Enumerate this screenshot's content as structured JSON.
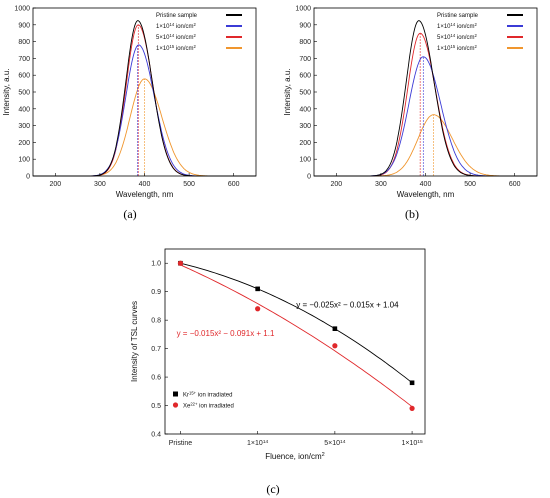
{
  "captions": [
    "(a)",
    "(b)",
    "(c)"
  ],
  "colors": {
    "pristine": "#000000",
    "e14": "#3b3bd6",
    "e5e14": "#e0282b",
    "e15": "#f0962e",
    "kr": "#000000",
    "xe": "#e0282b",
    "frame": "#000000"
  },
  "chart_data": [
    {
      "type": "line",
      "caption": "(a)",
      "xlabel": "Wavelength, nm",
      "ylabel": "Intensity, a.u.",
      "xlim": [
        150,
        650
      ],
      "ylim": [
        0,
        1000
      ],
      "xticks": [
        200,
        300,
        400,
        500,
        600
      ],
      "yticks": [
        0,
        100,
        200,
        300,
        400,
        500,
        600,
        700,
        800,
        900,
        1000
      ],
      "legend_position": "top-right",
      "series": [
        {
          "name": "Pristine sample",
          "label_main": "Pristine sample",
          "label_exp": "",
          "label_unit": "",
          "color_key": "pristine",
          "peak_x": 385,
          "peak_y": 925,
          "width": 40,
          "marker_x": 0
        },
        {
          "name": "1×10^14 ion/cm^2",
          "label_main": "1×10",
          "label_exp": "14",
          "label_unit": " ion/cm",
          "color_key": "e14",
          "peak_x": 387,
          "peak_y": 780,
          "width": 43,
          "marker_x": 384
        },
        {
          "name": "5×10^14 ion/cm^2",
          "label_main": "5×10",
          "label_exp": "14",
          "label_unit": " ion/cm",
          "color_key": "e5e14",
          "peak_x": 386,
          "peak_y": 900,
          "width": 40,
          "marker_x": 386
        },
        {
          "name": "1×10^15 ion/cm^2",
          "label_main": "1×10",
          "label_exp": "15",
          "label_unit": " ion/cm",
          "color_key": "e15",
          "peak_x": 400,
          "peak_y": 578,
          "width": 48,
          "marker_x": 400
        }
      ]
    },
    {
      "type": "line",
      "caption": "(b)",
      "xlabel": "Wavelength, nm",
      "ylabel": "Intensity, a.u.",
      "xlim": [
        150,
        650
      ],
      "ylim": [
        0,
        1000
      ],
      "xticks": [
        200,
        300,
        400,
        500,
        600
      ],
      "yticks": [
        0,
        100,
        200,
        300,
        400,
        500,
        600,
        700,
        800,
        900,
        1000
      ],
      "legend_position": "top-right",
      "series": [
        {
          "name": "Pristine sample",
          "label_main": "Pristine sample",
          "label_exp": "",
          "label_unit": "",
          "color_key": "pristine",
          "peak_x": 385,
          "peak_y": 925,
          "width": 42,
          "marker_x": 0
        },
        {
          "name": "1×10^14 ion/cm^2",
          "label_main": "1×10",
          "label_exp": "14",
          "label_unit": " ion/cm",
          "color_key": "e14",
          "peak_x": 395,
          "peak_y": 710,
          "width": 48,
          "marker_x": 395
        },
        {
          "name": "5×10^14 ion/cm^2",
          "label_main": "5×10",
          "label_exp": "14",
          "label_unit": " ion/cm",
          "color_key": "e5e14",
          "peak_x": 388,
          "peak_y": 850,
          "width": 42,
          "marker_x": 388
        },
        {
          "name": "1×10^15 ion/cm^2",
          "label_main": "1×10",
          "label_exp": "15",
          "label_unit": " ion/cm",
          "color_key": "e15",
          "peak_x": 418,
          "peak_y": 365,
          "width": 52,
          "marker_x": 418
        }
      ]
    },
    {
      "type": "scatter",
      "caption": "(c)",
      "xlabel": "Fluence, ion/cm",
      "xlabel_sup": "2",
      "ylabel": "Intensity of TSL curves",
      "xlim": [
        0,
        3.3
      ],
      "ylim": [
        0.4,
        1.05
      ],
      "yticks": [
        0.4,
        0.5,
        0.6,
        0.7,
        0.8,
        0.9,
        1.0
      ],
      "categories": [
        {
          "main": "Pristine",
          "exp": ""
        },
        {
          "main": "1×10",
          "exp": "14"
        },
        {
          "main": "5×10",
          "exp": "14"
        },
        {
          "main": "1×10",
          "exp": "15"
        }
      ],
      "legend_position": "bottom-left",
      "series": [
        {
          "name": "Kr15+ ion irradiated",
          "label_main": "Kr",
          "label_exp": "15+",
          "label_unit": " ion irradiated",
          "color_key": "kr",
          "marker": "square",
          "x": [
            0,
            1,
            2,
            3
          ],
          "y": [
            1.0,
            0.91,
            0.77,
            0.58
          ],
          "fit": [
            -0.025,
            -0.015,
            1.04
          ]
        },
        {
          "name": "Xe22+ ion irradiated",
          "label_main": "Xe",
          "label_exp": "22+",
          "label_unit": " ion irradiated",
          "color_key": "xe",
          "marker": "circle",
          "x": [
            0,
            1,
            2,
            3
          ],
          "y": [
            1.0,
            0.84,
            0.71,
            0.49
          ],
          "fit": [
            -0.015,
            -0.091,
            1.1
          ]
        }
      ],
      "annotations": [
        {
          "text": "y = −0.025x² − 0.015x + 1.04",
          "color_key": "kr",
          "x": 1.5,
          "y": 0.845
        },
        {
          "text": "y = −0.015x² − 0.091x + 1.1",
          "color_key": "xe",
          "x": -0.05,
          "y": 0.745
        }
      ]
    }
  ]
}
